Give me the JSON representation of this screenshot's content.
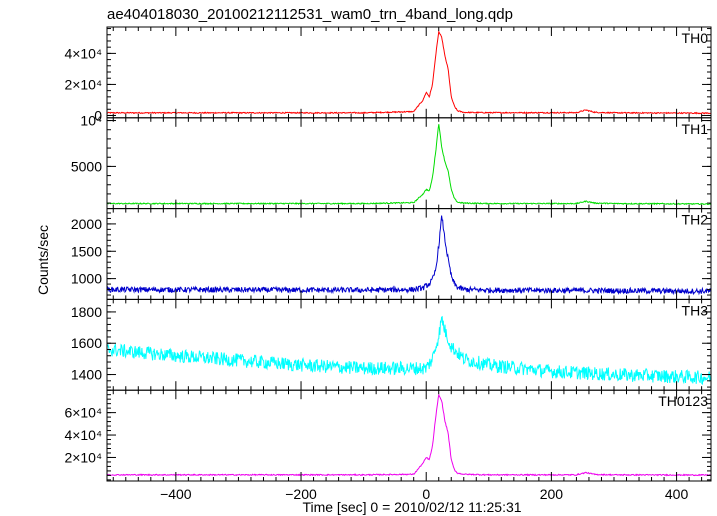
{
  "chart_data": {
    "type": "line",
    "title": "ae404018030_20100212112531_wam0_trn_4band_long.qdp",
    "xlabel": "Time [sec] 0 = 2010/02/12 11:25:31",
    "ylabel": "Counts/sec",
    "xlim": [
      -510,
      455
    ],
    "xticks": [
      -400,
      -200,
      0,
      200,
      400
    ],
    "xtick_labels": [
      "−400",
      "−200",
      "0",
      "200",
      "400"
    ],
    "grid": false,
    "panels": [
      {
        "name": "TH0",
        "color": "#ff0000",
        "ylim": [
          -1500,
          57000
        ],
        "yticks": [
          0,
          20000,
          40000
        ],
        "ytick_labels": [
          "0",
          "2×10⁴",
          "4×10⁴"
        ],
        "x": [
          -510,
          -300,
          -100,
          -20,
          -5,
          0,
          5,
          10,
          15,
          20,
          25,
          30,
          35,
          40,
          45,
          50,
          60,
          100,
          240,
          255,
          270,
          300,
          455
        ],
        "y": [
          1700,
          1700,
          1700,
          2500,
          10000,
          15000,
          12000,
          20000,
          38000,
          54000,
          50000,
          38000,
          30000,
          12000,
          6000,
          3000,
          2000,
          1800,
          1800,
          3500,
          2000,
          1700,
          1500
        ]
      },
      {
        "name": "TH1",
        "color": "#00dd00",
        "ylim": [
          400,
          10300
        ],
        "yticks": [
          5000,
          10000
        ],
        "ytick_labels": [
          "5000",
          "10⁴"
        ],
        "x": [
          -510,
          -300,
          -100,
          -20,
          -5,
          0,
          5,
          10,
          15,
          20,
          25,
          30,
          35,
          40,
          45,
          50,
          60,
          100,
          240,
          255,
          270,
          300,
          455
        ],
        "y": [
          950,
          950,
          950,
          1050,
          2000,
          2500,
          2300,
          3800,
          6500,
          9700,
          7000,
          5500,
          4500,
          2500,
          1500,
          1100,
          1000,
          950,
          950,
          1200,
          1000,
          950,
          900
        ]
      },
      {
        "name": "TH2",
        "color": "#0000cc",
        "ylim": [
          620,
          2280
        ],
        "yticks": [
          1000,
          1500,
          2000
        ],
        "ytick_labels": [
          "1000",
          "1500",
          "2000"
        ],
        "x": [
          -510,
          -300,
          -100,
          -20,
          -5,
          0,
          5,
          10,
          15,
          20,
          25,
          30,
          35,
          40,
          45,
          50,
          60,
          100,
          200,
          300,
          455
        ],
        "y": [
          800,
          795,
          790,
          800,
          830,
          870,
          900,
          980,
          1150,
          1600,
          2150,
          1700,
          1350,
          1050,
          900,
          840,
          800,
          790,
          785,
          780,
          770
        ]
      },
      {
        "name": "TH3",
        "color": "#00ffff",
        "ylim": [
          1300,
          1880
        ],
        "yticks": [
          1400,
          1600,
          1800
        ],
        "ytick_labels": [
          "1400",
          "1600",
          "1800"
        ],
        "x": [
          -510,
          -400,
          -300,
          -200,
          -100,
          0,
          10,
          20,
          25,
          30,
          40,
          60,
          100,
          200,
          300,
          455
        ],
        "y": [
          1560,
          1520,
          1490,
          1460,
          1440,
          1440,
          1500,
          1650,
          1760,
          1680,
          1580,
          1500,
          1460,
          1420,
          1400,
          1380
        ]
      },
      {
        "name": "TH0123",
        "color": "#ee00ee",
        "ylim": [
          -1000,
          80000
        ],
        "yticks": [
          20000,
          40000,
          60000
        ],
        "ytick_labels": [
          "2×10⁴",
          "4×10⁴",
          "6×10⁴"
        ],
        "x": [
          -510,
          -300,
          -100,
          -20,
          -5,
          0,
          5,
          10,
          15,
          20,
          25,
          30,
          35,
          40,
          45,
          50,
          60,
          100,
          240,
          255,
          270,
          300,
          455
        ],
        "y": [
          4500,
          4500,
          4500,
          5000,
          15000,
          20000,
          18000,
          30000,
          55000,
          76000,
          70000,
          52000,
          42000,
          18000,
          9000,
          6000,
          5000,
          4500,
          4500,
          6500,
          4800,
          4500,
          4300
        ]
      }
    ]
  }
}
